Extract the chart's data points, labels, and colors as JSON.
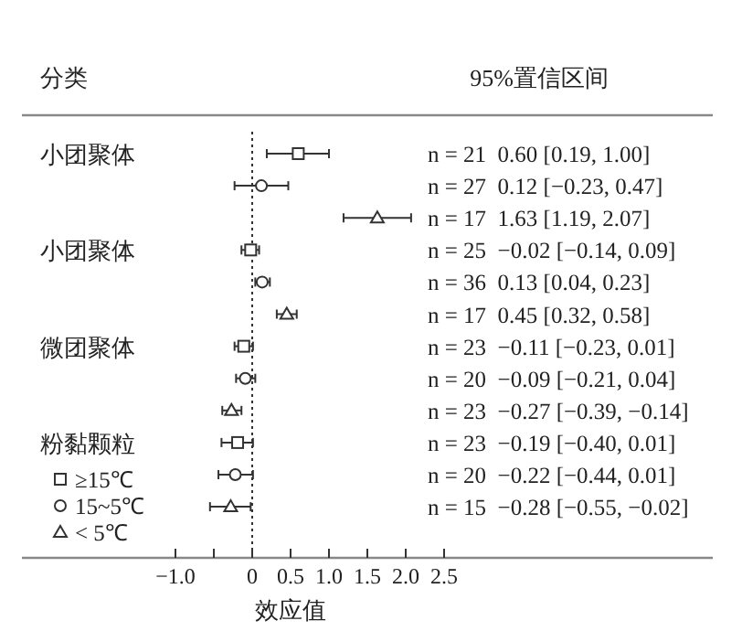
{
  "chart_data": {
    "type": "scatter",
    "orientation": "horizontal",
    "annotations": [
      "分类",
      "95%置信区间",
      "n = 21  0.60 [0.19, 1.00]",
      "n = 27  0.12 [−0.23, 0.47]",
      "n = 17  1.63 [1.19, 2.07]",
      "n = 25  −0.02 [−0.14, 0.09]",
      "n = 36  0.13 [0.04, 0.23]",
      "n = 17  0.45 [0.32, 0.58]",
      "n = 23  −0.11 [−0.23, 0.01]",
      "n = 20  −0.09 [−0.21, 0.04]",
      "n = 23  −0.27 [−0.39, −0.14]",
      "n = 23  −0.19 [−0.40, 0.01]",
      "n = 20  −0.22 [−0.44, 0.01]",
      "n = 15  −0.28 [−0.55, −0.02]"
    ],
    "xlabel": "效应值",
    "categories": [
      "小团聚体",
      null,
      null,
      "小团聚体",
      null,
      null,
      "微团聚体",
      null,
      null,
      "粉黏颗粒",
      null,
      null
    ],
    "series": [
      {
        "name": "≥15℃",
        "marker": "square",
        "color": "#333333",
        "values": [
          0.6,
          null,
          null,
          -0.02,
          null,
          null,
          -0.11,
          null,
          null,
          -0.19,
          null,
          null
        ],
        "errors": [
          [
            0.19,
            1.0
          ],
          null,
          null,
          [
            -0.14,
            0.09
          ],
          null,
          null,
          [
            -0.23,
            0.01
          ],
          null,
          null,
          [
            -0.4,
            0.01
          ],
          null,
          null
        ]
      },
      {
        "name": "15~5℃",
        "marker": "circle",
        "color": "#333333",
        "values": [
          null,
          0.12,
          null,
          null,
          0.13,
          null,
          null,
          -0.09,
          null,
          null,
          -0.22,
          null
        ],
        "errors": [
          null,
          [
            -0.23,
            0.47
          ],
          null,
          null,
          [
            0.04,
            0.23
          ],
          null,
          null,
          [
            -0.21,
            0.04
          ],
          null,
          null,
          [
            -0.44,
            0.01
          ],
          null
        ]
      },
      {
        "name": "< 5℃",
        "marker": "triangle",
        "color": "#333333",
        "values": [
          null,
          null,
          1.63,
          null,
          null,
          0.45,
          null,
          null,
          -0.27,
          null,
          null,
          -0.28
        ],
        "errors": [
          null,
          null,
          [
            1.19,
            2.07
          ],
          null,
          null,
          [
            0.32,
            0.58
          ],
          null,
          null,
          [
            -0.39,
            -0.14
          ],
          null,
          null,
          [
            -0.55,
            -0.02
          ]
        ]
      }
    ],
    "xlim": [
      -3,
      6
    ],
    "xticks": [
      {
        "value": -1,
        "label": "−1.0"
      },
      {
        "value": -0.5,
        "label": null
      },
      0,
      0.5,
      {
        "value": 1,
        "label": "1.0"
      },
      1.5,
      {
        "value": 2,
        "label": "2.0"
      },
      2.5
    ],
    "ref_lines": [
      {
        "axis": "x",
        "value": 0,
        "line_style": "dotted",
        "color": "#333333"
      }
    ],
    "legend": "bottom left",
    "grid": false
  }
}
